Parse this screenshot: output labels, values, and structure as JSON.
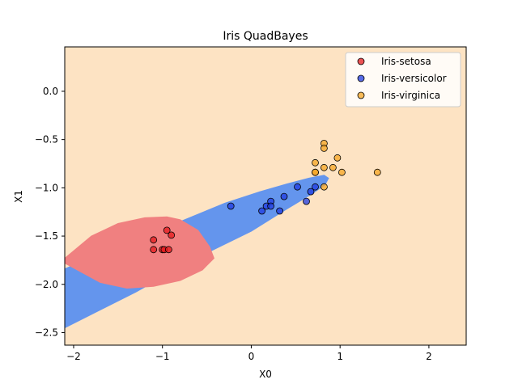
{
  "chart_data": {
    "type": "scatter",
    "title": "Iris QuadBayes",
    "xlabel": "X0",
    "ylabel": "X1",
    "xlim": [
      -2.1,
      2.42
    ],
    "ylim": [
      -2.63,
      0.46
    ],
    "xticks": [
      -2,
      -1,
      0,
      1,
      2
    ],
    "yticks": [
      0.0,
      -0.5,
      -1.0,
      -1.5,
      -2.0,
      -2.5
    ],
    "xtick_labels": [
      "−2",
      "−1",
      "0",
      "1",
      "2"
    ],
    "ytick_labels": [
      "0.0",
      "−0.5",
      "−1.0",
      "−1.5",
      "−2.0",
      "−2.5"
    ],
    "grid": false,
    "legend_position": "top-right",
    "background_region": {
      "class": "Iris-virginica",
      "color": "#fde3c3"
    },
    "regions": [
      {
        "class": "Iris-versicolor",
        "color": "#6495ed",
        "polygon": [
          [
            -2.1,
            -2.45
          ],
          [
            -1.3,
            -2.08
          ],
          [
            -0.6,
            -1.72
          ],
          [
            0.0,
            -1.45
          ],
          [
            0.4,
            -1.22
          ],
          [
            0.67,
            -1.07
          ],
          [
            0.83,
            -0.97
          ],
          [
            0.87,
            -0.9
          ],
          [
            0.82,
            -0.87
          ],
          [
            0.65,
            -0.9
          ],
          [
            0.4,
            -0.96
          ],
          [
            0.1,
            -1.04
          ],
          [
            -0.3,
            -1.16
          ],
          [
            -0.8,
            -1.35
          ],
          [
            -1.4,
            -1.58
          ],
          [
            -1.8,
            -1.72
          ],
          [
            -2.1,
            -1.84
          ]
        ]
      },
      {
        "class": "Iris-setosa",
        "color": "#f08080",
        "polygon": [
          [
            -2.1,
            -1.73
          ],
          [
            -1.8,
            -1.5
          ],
          [
            -1.5,
            -1.37
          ],
          [
            -1.2,
            -1.31
          ],
          [
            -0.95,
            -1.3
          ],
          [
            -0.8,
            -1.33
          ],
          [
            -0.6,
            -1.44
          ],
          [
            -0.47,
            -1.61
          ],
          [
            -0.42,
            -1.73
          ],
          [
            -0.55,
            -1.85
          ],
          [
            -0.8,
            -1.96
          ],
          [
            -1.1,
            -2.02
          ],
          [
            -1.4,
            -2.04
          ],
          [
            -1.7,
            -1.98
          ],
          [
            -1.9,
            -1.88
          ],
          [
            -2.1,
            -1.78
          ]
        ]
      }
    ],
    "series": [
      {
        "name": "Iris-setosa",
        "color": "#e41a1c",
        "points": [
          [
            -1.1,
            -1.54
          ],
          [
            -1.1,
            -1.64
          ],
          [
            -1.0,
            -1.64
          ],
          [
            -0.98,
            -1.64
          ],
          [
            -0.95,
            -1.44
          ],
          [
            -0.93,
            -1.64
          ],
          [
            -0.9,
            -1.49
          ]
        ]
      },
      {
        "name": "Iris-versicolor",
        "color": "#1f3be0",
        "points": [
          [
            -0.23,
            -1.19
          ],
          [
            0.12,
            -1.24
          ],
          [
            0.17,
            -1.19
          ],
          [
            0.22,
            -1.14
          ],
          [
            0.22,
            -1.19
          ],
          [
            0.32,
            -1.24
          ],
          [
            0.37,
            -1.09
          ],
          [
            0.52,
            -0.99
          ],
          [
            0.62,
            -1.14
          ],
          [
            0.67,
            -1.04
          ],
          [
            0.72,
            -0.99
          ]
        ]
      },
      {
        "name": "Iris-virginica",
        "color": "#f5a623",
        "points": [
          [
            0.72,
            -0.84
          ],
          [
            0.72,
            -0.74
          ],
          [
            0.72,
            -0.84
          ],
          [
            0.82,
            -0.54
          ],
          [
            0.82,
            -0.59
          ],
          [
            0.82,
            -0.79
          ],
          [
            0.82,
            -0.99
          ],
          [
            0.92,
            -0.79
          ],
          [
            0.97,
            -0.69
          ],
          [
            1.02,
            -0.84
          ],
          [
            1.42,
            -0.84
          ]
        ]
      }
    ]
  }
}
